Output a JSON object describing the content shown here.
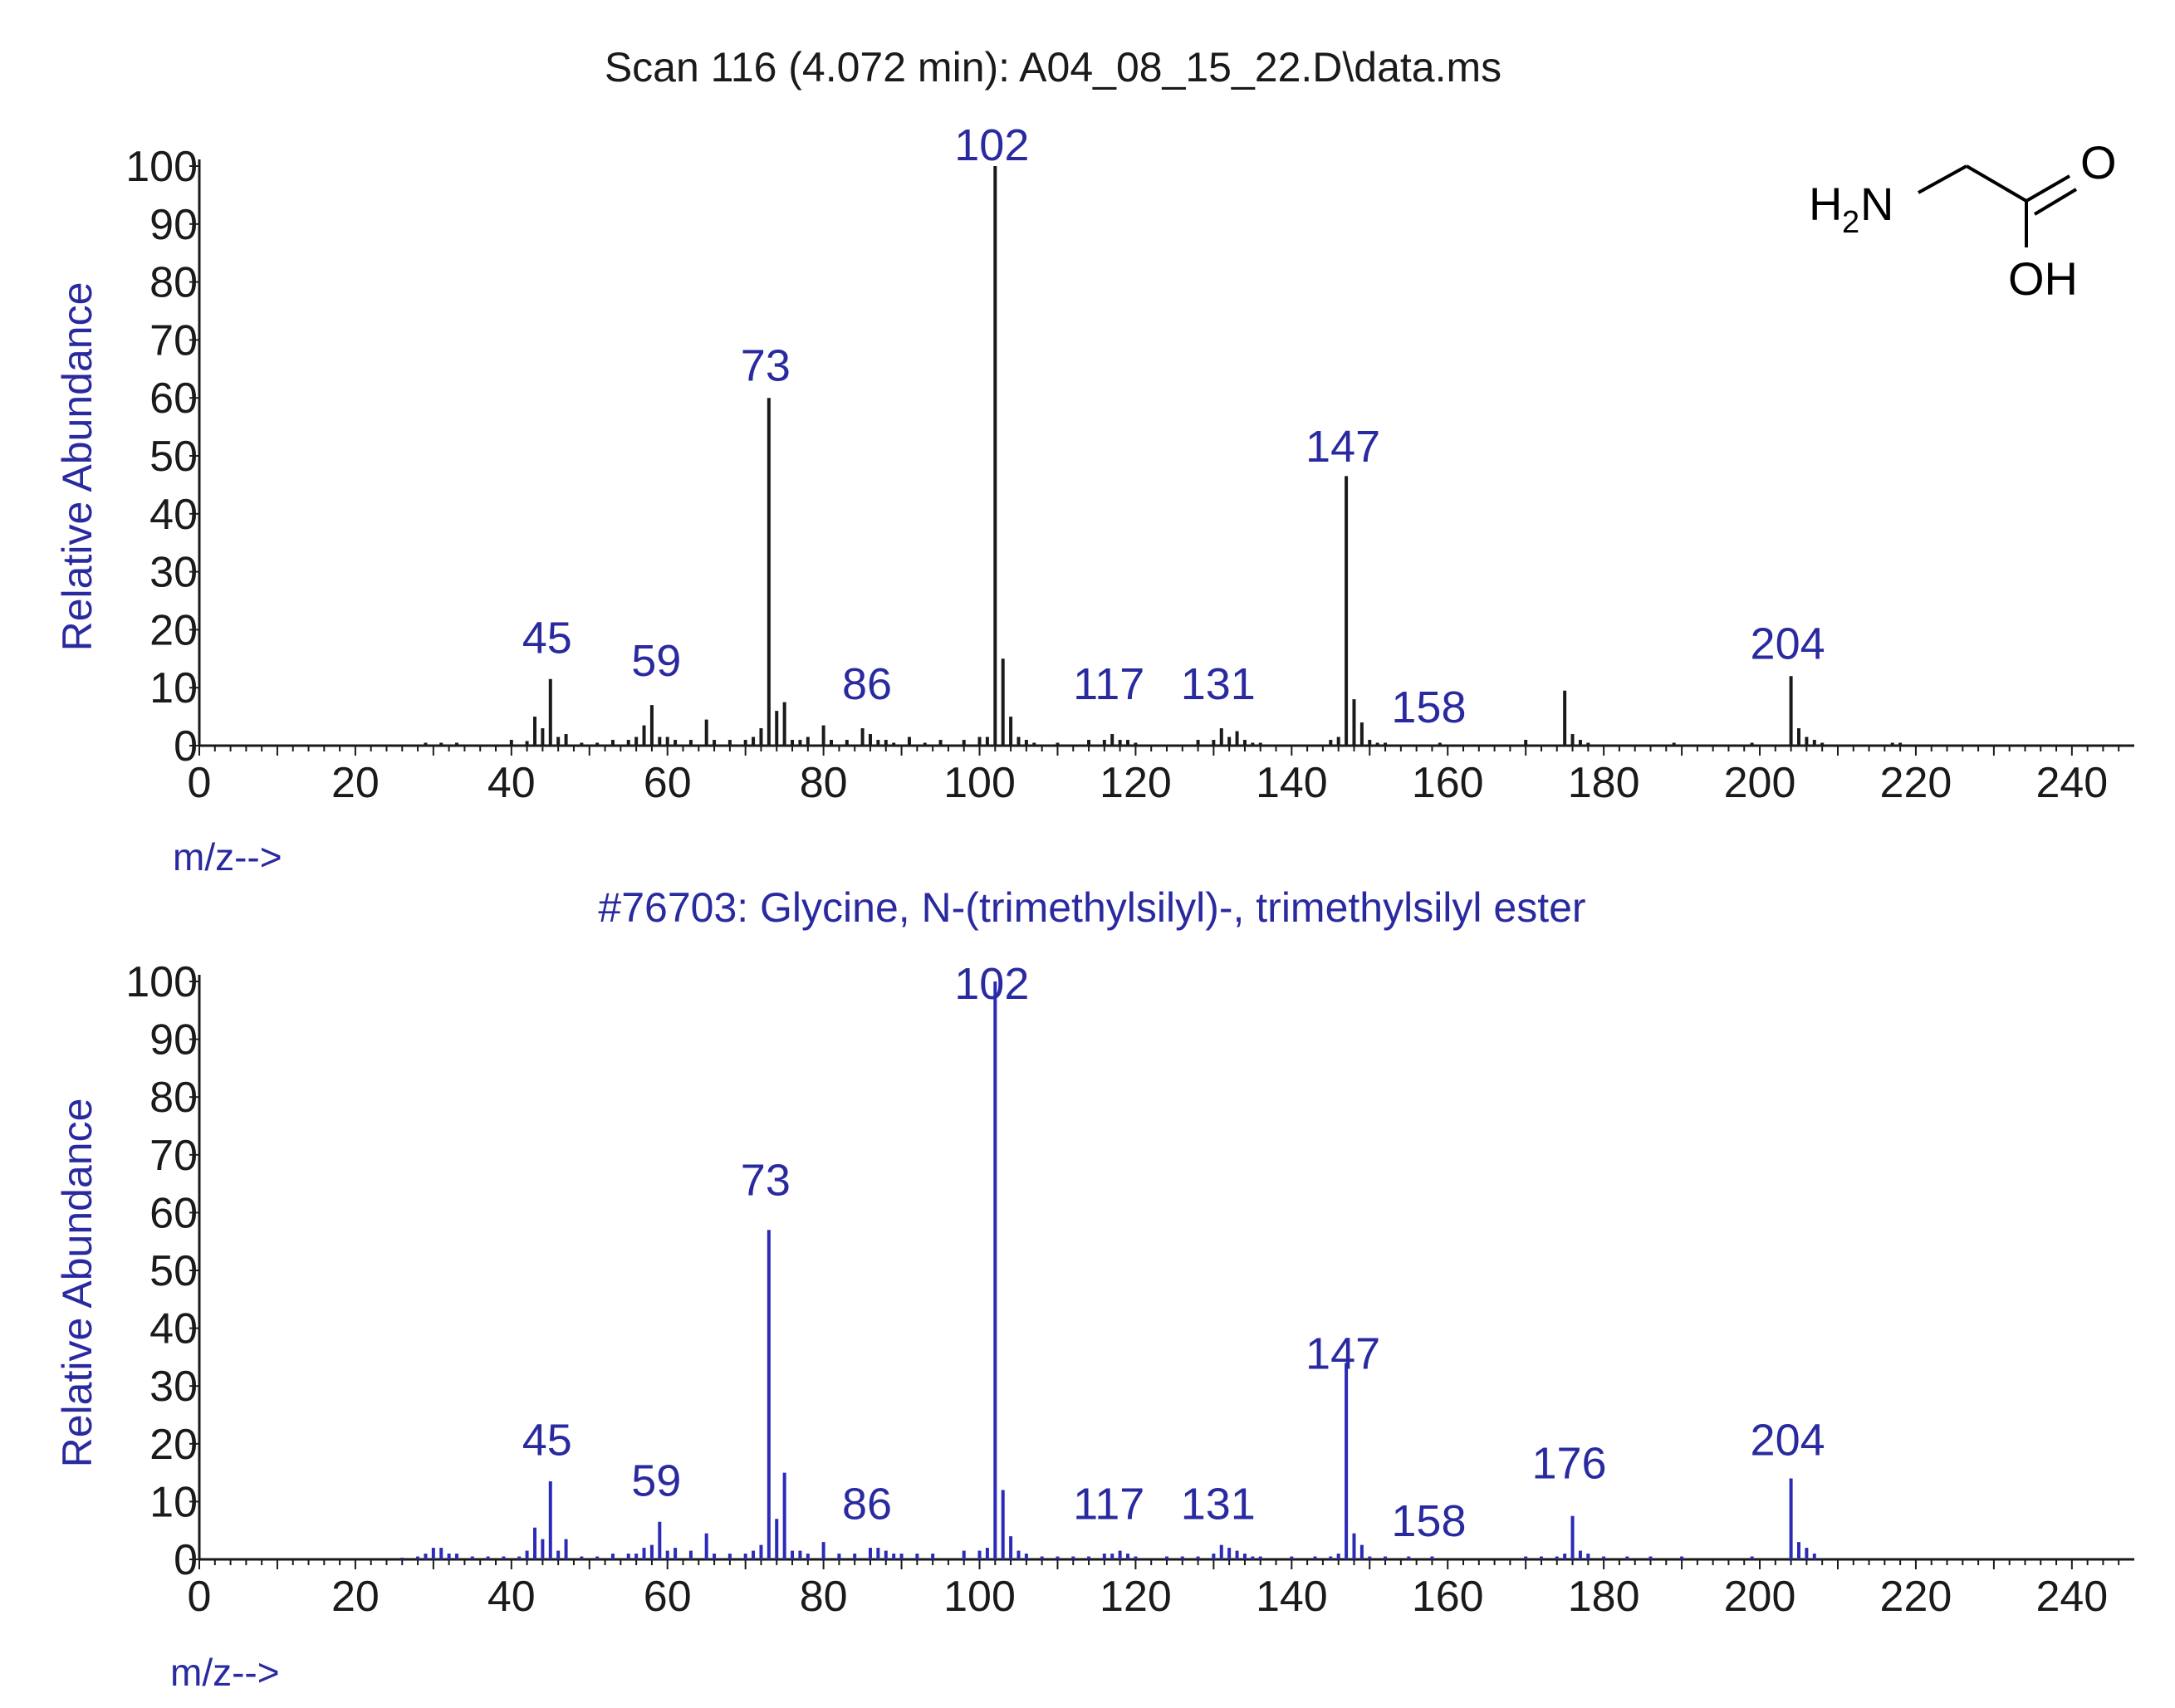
{
  "colors": {
    "scan_bars": "#1a1a1a",
    "library_bars": "#2b2bb8",
    "peak_label": "#2a2aa0",
    "axis_label": "#2a2aa0",
    "axis": "#1a1a1a",
    "title": "#1a1a1a",
    "library_title": "#2a2aa0"
  },
  "structure": {
    "amine_label": "H",
    "amine_subscript": "2",
    "amine_n": "N",
    "oxygen_label": "O",
    "hydroxyl_label": "OH"
  },
  "chart_data": [
    {
      "type": "bar",
      "title": "Scan 116 (4.072 min): A04_08_15_22.D\\data.ms",
      "ylabel": "Relative Abundance",
      "xlabel": "m/z-->",
      "xlim": [
        0,
        248
      ],
      "ylim": [
        0,
        100
      ],
      "xticks": [
        "0",
        "20",
        "40",
        "60",
        "80",
        "100",
        "120",
        "140",
        "160",
        "180",
        "200",
        "220",
        "240"
      ],
      "yticks": [
        "0",
        "10",
        "20",
        "30",
        "40",
        "50",
        "60",
        "70",
        "80",
        "90",
        "100"
      ],
      "grid": false,
      "peak_labels": [
        {
          "x": 45,
          "text": "45",
          "level": 16
        },
        {
          "x": 59,
          "text": "59",
          "level": 12
        },
        {
          "x": 73,
          "text": "73",
          "level": 63
        },
        {
          "x": 86,
          "text": "86",
          "level": 8
        },
        {
          "x": 102,
          "text": "102",
          "level": 101
        },
        {
          "x": 117,
          "text": "117",
          "level": 8
        },
        {
          "x": 131,
          "text": "131",
          "level": 8
        },
        {
          "x": 147,
          "text": "147",
          "level": 49
        },
        {
          "x": 158,
          "text": "158",
          "level": 4
        },
        {
          "x": 204,
          "text": "204",
          "level": 15
        }
      ],
      "series": [
        {
          "x": [
            29,
            31,
            33,
            40,
            42,
            43,
            44,
            45,
            46,
            47,
            49,
            51,
            53,
            55,
            56,
            57,
            58,
            59,
            60,
            61,
            63,
            65,
            66,
            68,
            70,
            71,
            72,
            73,
            74,
            75,
            76,
            77,
            78,
            80,
            81,
            83,
            85,
            86,
            87,
            88,
            89,
            91,
            93,
            95,
            98,
            100,
            101,
            102,
            103,
            104,
            105,
            106,
            107,
            110,
            114,
            116,
            117,
            118,
            119,
            120,
            128,
            130,
            131,
            132,
            133,
            134,
            135,
            136,
            145,
            146,
            147,
            148,
            149,
            150,
            151,
            152,
            159,
            170,
            175,
            176,
            177,
            178,
            189,
            199,
            204,
            205,
            206,
            207,
            208,
            217,
            218
          ],
          "values": [
            0.5,
            0.5,
            0.5,
            1,
            0.8,
            5,
            3,
            11.5,
            1.5,
            2,
            0.5,
            0.5,
            1,
            1,
            1.5,
            3.5,
            7,
            1.5,
            1.5,
            1,
            1,
            4.5,
            1,
            1,
            1,
            1.5,
            3,
            60,
            6,
            7.5,
            1,
            1,
            1.5,
            3.5,
            1,
            1,
            3,
            2,
            1,
            1,
            0.5,
            1.5,
            0.5,
            1,
            1,
            1.5,
            1.5,
            100,
            15,
            5,
            1.5,
            1,
            0.5,
            0.5,
            1,
            1,
            2,
            1,
            1,
            0.5,
            1,
            1,
            3,
            1.5,
            2.5,
            1,
            0.5,
            0.5,
            1,
            1.5,
            46.5,
            8,
            4,
            1,
            0.5,
            0.5,
            0.5,
            1,
            9.5,
            2,
            1,
            0.5,
            0.5,
            0.5,
            12,
            3,
            1.5,
            1,
            0.5,
            0.5,
            0.5
          ]
        }
      ]
    },
    {
      "type": "bar",
      "title": "#76703: Glycine, N-(trimethylsilyl)-,  trimethylsilyl ester",
      "ylabel": "Relative Abundance",
      "xlabel": "m/z-->",
      "xlim": [
        0,
        248
      ],
      "ylim": [
        0,
        100
      ],
      "xticks": [
        "0",
        "20",
        "40",
        "60",
        "80",
        "100",
        "120",
        "140",
        "160",
        "180",
        "200",
        "220",
        "240"
      ],
      "yticks": [
        "0",
        "10",
        "20",
        "30",
        "40",
        "50",
        "60",
        "70",
        "80",
        "90",
        "100"
      ],
      "grid": false,
      "peak_labels": [
        {
          "x": 45,
          "text": "45",
          "level": 18
        },
        {
          "x": 59,
          "text": "59",
          "level": 11
        },
        {
          "x": 73,
          "text": "73",
          "level": 63
        },
        {
          "x": 86,
          "text": "86",
          "level": 7
        },
        {
          "x": 102,
          "text": "102",
          "level": 97
        },
        {
          "x": 117,
          "text": "117",
          "level": 7
        },
        {
          "x": 131,
          "text": "131",
          "level": 7
        },
        {
          "x": 147,
          "text": "147",
          "level": 33
        },
        {
          "x": 158,
          "text": "158",
          "level": 4
        },
        {
          "x": 176,
          "text": "176",
          "level": 14
        },
        {
          "x": 204,
          "text": "204",
          "level": 18
        }
      ],
      "series": [
        {
          "x": [
            26,
            28,
            29,
            30,
            31,
            32,
            33,
            35,
            37,
            39,
            41,
            42,
            43,
            44,
            45,
            46,
            47,
            49,
            51,
            53,
            55,
            56,
            57,
            58,
            59,
            60,
            61,
            63,
            65,
            66,
            68,
            70,
            71,
            72,
            73,
            74,
            75,
            76,
            77,
            78,
            80,
            82,
            84,
            86,
            87,
            88,
            89,
            90,
            92,
            94,
            98,
            100,
            101,
            102,
            103,
            104,
            105,
            106,
            108,
            110,
            112,
            114,
            116,
            117,
            118,
            119,
            120,
            124,
            126,
            128,
            130,
            131,
            132,
            133,
            134,
            135,
            136,
            140,
            143,
            145,
            146,
            147,
            148,
            149,
            150,
            152,
            155,
            158,
            170,
            172,
            174,
            175,
            176,
            177,
            178,
            180,
            183,
            186,
            190,
            199,
            204,
            205,
            206,
            207
          ],
          "values": [
            0.3,
            0.5,
            1,
            2,
            2,
            1,
            1,
            0.5,
            0.5,
            0.5,
            0.5,
            1.5,
            5.5,
            3.5,
            13.5,
            1.5,
            3.5,
            0.5,
            0.5,
            1,
            1,
            1,
            2,
            2.5,
            6.5,
            1.5,
            2,
            1.5,
            4.5,
            1,
            1,
            1,
            1.5,
            2.5,
            57,
            7,
            15,
            1.5,
            1.5,
            1,
            3,
            1,
            1,
            2,
            2,
            1.5,
            1,
            1,
            1,
            1,
            1.5,
            1.5,
            2,
            100,
            12,
            4,
            1.5,
            1,
            0.5,
            0.5,
            0.5,
            0.5,
            1,
            1,
            1.5,
            1,
            0.5,
            0.5,
            0.5,
            0.5,
            1,
            2.5,
            2,
            1.5,
            1,
            0.5,
            0.5,
            0.5,
            0.5,
            0.5,
            1,
            34,
            4.5,
            2.5,
            0.5,
            0.5,
            0.5,
            0.5,
            0.5,
            0.5,
            0.5,
            1,
            7.5,
            1.5,
            1,
            0.5,
            0.5,
            0.5,
            0.5,
            0.5,
            14,
            3,
            2,
            1
          ]
        }
      ]
    }
  ]
}
